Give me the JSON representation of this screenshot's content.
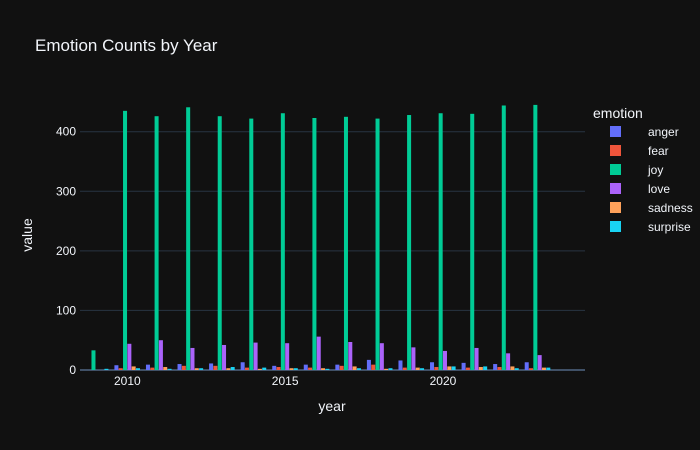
{
  "chart_data": {
    "type": "bar",
    "title": "Emotion Counts by Year",
    "xlabel": "year",
    "ylabel": "value",
    "legend_title": "emotion",
    "legend_position": "right",
    "grid": true,
    "xlim": [
      2008.5,
      2024.5
    ],
    "ylim": [
      0,
      470
    ],
    "x_ticks": [
      2010,
      2015,
      2020
    ],
    "y_ticks": [
      0,
      100,
      200,
      300,
      400
    ],
    "x": [
      2009,
      2010,
      2011,
      2012,
      2013,
      2014,
      2015,
      2016,
      2017,
      2018,
      2019,
      2020,
      2021,
      2022,
      2023,
      2024
    ],
    "series": [
      {
        "name": "anger",
        "color": "#636efa",
        "values": [
          0,
          8,
          9,
          10,
          11,
          13,
          7,
          9,
          9,
          17,
          16,
          13,
          12,
          10,
          13,
          0
        ]
      },
      {
        "name": "fear",
        "color": "#ef553b",
        "values": [
          0,
          3,
          4,
          7,
          7,
          4,
          5,
          4,
          7,
          9,
          4,
          5,
          4,
          5,
          3,
          0
        ]
      },
      {
        "name": "joy",
        "color": "#00cc96",
        "values": [
          33,
          435,
          426,
          441,
          426,
          422,
          431,
          423,
          425,
          422,
          428,
          431,
          430,
          444,
          445,
          0
        ]
      },
      {
        "name": "love",
        "color": "#ab63fa",
        "values": [
          0,
          44,
          50,
          37,
          42,
          46,
          45,
          56,
          47,
          45,
          38,
          32,
          37,
          28,
          25,
          0
        ]
      },
      {
        "name": "sadness",
        "color": "#ffa15a",
        "values": [
          0,
          6,
          5,
          3,
          3,
          2,
          3,
          3,
          6,
          2,
          4,
          6,
          5,
          6,
          4,
          0
        ]
      },
      {
        "name": "surprise",
        "color": "#19d3f3",
        "values": [
          2,
          3,
          2,
          3,
          5,
          4,
          3,
          2,
          3,
          3,
          3,
          6,
          6,
          3,
          4,
          0
        ]
      }
    ]
  }
}
